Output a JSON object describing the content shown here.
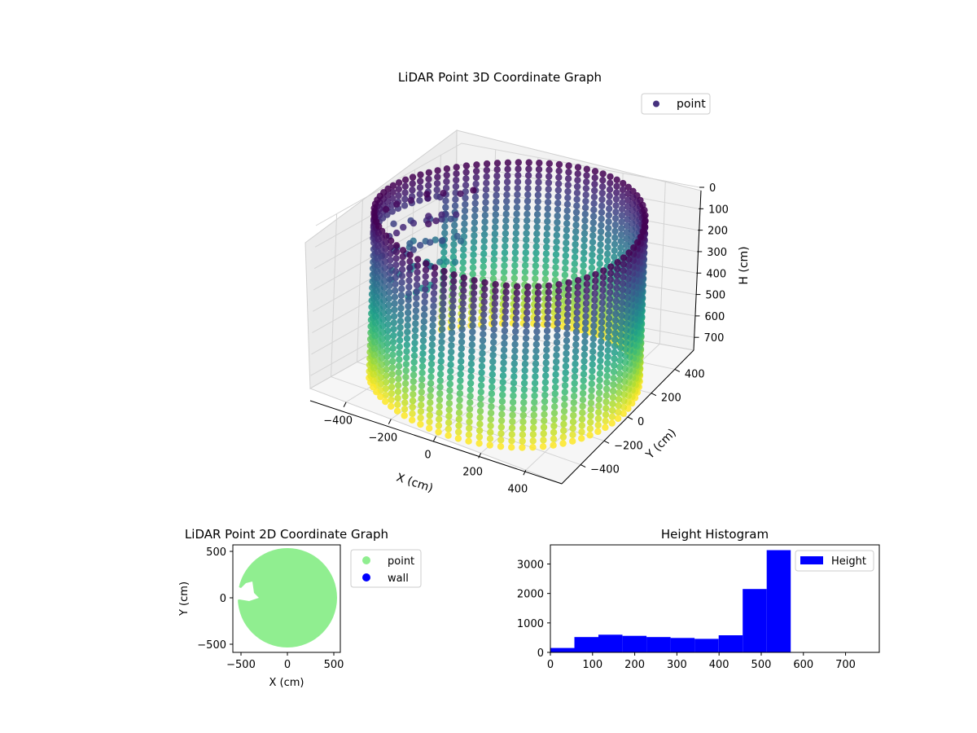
{
  "chart_data": [
    {
      "type": "scatter",
      "projection": "3d",
      "title": "LiDAR Point 3D Coordinate Graph",
      "xlabel": "X (cm)",
      "ylabel": "Y (cm)",
      "zlabel": "H (cm)",
      "x_ticks": [
        "−400",
        "−200",
        "0",
        "200",
        "400"
      ],
      "y_ticks": [
        "−400",
        "−200",
        "0",
        "200",
        "400"
      ],
      "z_ticks": [
        "0",
        "100",
        "200",
        "300",
        "400",
        "500",
        "600",
        "700"
      ],
      "xlim": [
        -560,
        560
      ],
      "ylim": [
        -560,
        560
      ],
      "zlim": [
        0,
        760
      ],
      "z_inverted": true,
      "colormap": "viridis",
      "legend": [
        {
          "label": "point",
          "color": "#46327e",
          "marker": "circle"
        }
      ],
      "legend_position": "upper-right",
      "grid": true,
      "shape": "cylindrical wall",
      "wall_radius": 540,
      "height_range": [
        0,
        750
      ]
    },
    {
      "type": "scatter",
      "title": "LiDAR Point 2D Coordinate Graph",
      "xlabel": "X (cm)",
      "ylabel": "Y (cm)",
      "x_ticks": [
        "−500",
        "0",
        "500"
      ],
      "y_ticks": [
        "−500",
        "0",
        "500"
      ],
      "xlim": [
        -580,
        580
      ],
      "ylim": [
        -580,
        580
      ],
      "series": [
        {
          "name": "point",
          "color": "#90ee90",
          "shape": "filled disc",
          "radius": 540
        },
        {
          "name": "wall",
          "color": "#0000ff"
        }
      ],
      "legend_position": "outside-right"
    },
    {
      "type": "bar",
      "title": "Height Histogram",
      "xlabel": "",
      "ylabel": "",
      "bin_edges": [
        0,
        57,
        114,
        171,
        228,
        285,
        342,
        399,
        456,
        513,
        570
      ],
      "values": [
        150,
        520,
        600,
        560,
        520,
        490,
        460,
        580,
        2150,
        3470
      ],
      "color": "#0000ff",
      "x_ticks": [
        "0",
        "100",
        "200",
        "300",
        "400",
        "500",
        "600",
        "700"
      ],
      "y_ticks": [
        "0",
        "1000",
        "2000",
        "3000"
      ],
      "xlim": [
        0,
        780
      ],
      "ylim": [
        0,
        3650
      ],
      "legend": [
        {
          "label": "Height",
          "color": "#0000ff"
        }
      ],
      "legend_position": "upper-right"
    }
  ]
}
